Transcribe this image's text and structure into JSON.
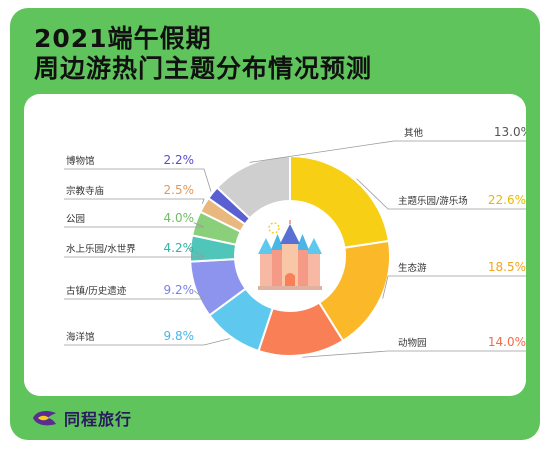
{
  "title": {
    "line1": "2021端午假期",
    "line2": "周边游热门主题分布情况预测"
  },
  "brand": {
    "name": "同程旅行",
    "icon": "tongcheng-logo-icon"
  },
  "colors": {
    "background": "#5fc45c",
    "panel": "#ffffff"
  },
  "chart_data": {
    "type": "pie",
    "variant": "donut",
    "start_angle_deg": 0,
    "direction": "clockwise",
    "labels": [
      "主题乐园/游乐场",
      "生态游",
      "动物园",
      "海洋馆",
      "古镇/历史遗迹",
      "水上乐园/水世界",
      "公园",
      "宗教寺庙",
      "博物馆",
      "其他"
    ],
    "values": [
      22.6,
      18.5,
      14.0,
      9.8,
      9.2,
      4.2,
      4.0,
      2.5,
      2.2,
      13.0
    ],
    "value_labels": [
      "22.6%",
      "18.5%",
      "14.0%",
      "9.8%",
      "9.2%",
      "4.2%",
      "4.0%",
      "2.5%",
      "2.2%",
      "13.0%"
    ],
    "colors": [
      "#f7cf14",
      "#fbb829",
      "#f97f56",
      "#5fc8ef",
      "#8c94ee",
      "#4fc6b9",
      "#8ad07a",
      "#e8b87e",
      "#5a5fd2",
      "#cfcfcf"
    ],
    "value_colors": [
      "#e9b800",
      "#f0a51e",
      "#f26b49",
      "#4ab6e6",
      "#7a82e4",
      "#31b3a5",
      "#72bd62",
      "#e09a5c",
      "#5a4fc7",
      "#555555"
    ],
    "center_icon": "castle-icon"
  }
}
